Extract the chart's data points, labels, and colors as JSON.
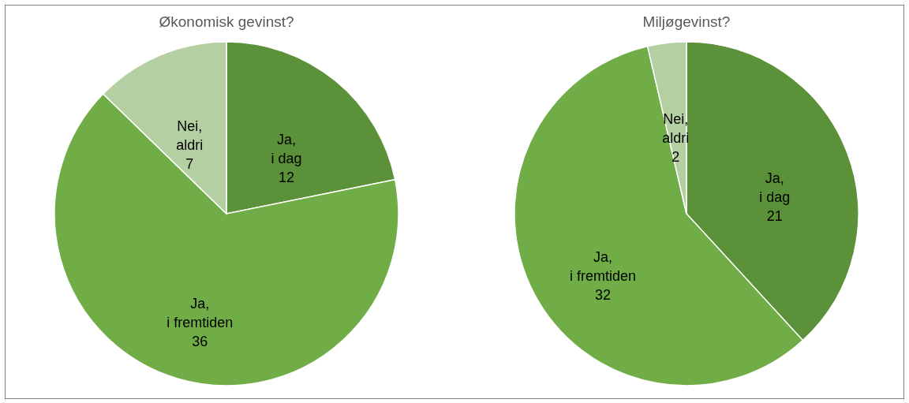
{
  "chart_data": [
    {
      "type": "pie",
      "title": "Økonomisk gevinst?",
      "categories": [
        "Ja, i dag",
        "Ja, i fremtiden",
        "Nei, aldri"
      ],
      "values": [
        12,
        36,
        7
      ],
      "colors": [
        "#5b9138",
        "#70ad47",
        "#b4cfa2"
      ],
      "data_labels": true,
      "legend": false
    },
    {
      "type": "pie",
      "title": "Miljøgevinst?",
      "categories": [
        "Ja, i dag",
        "Ja, i fremtiden",
        "Nei, aldri"
      ],
      "values": [
        21,
        32,
        2
      ],
      "colors": [
        "#5b9138",
        "#70ad47",
        "#b4cfa2"
      ],
      "data_labels": true,
      "legend": false
    }
  ]
}
